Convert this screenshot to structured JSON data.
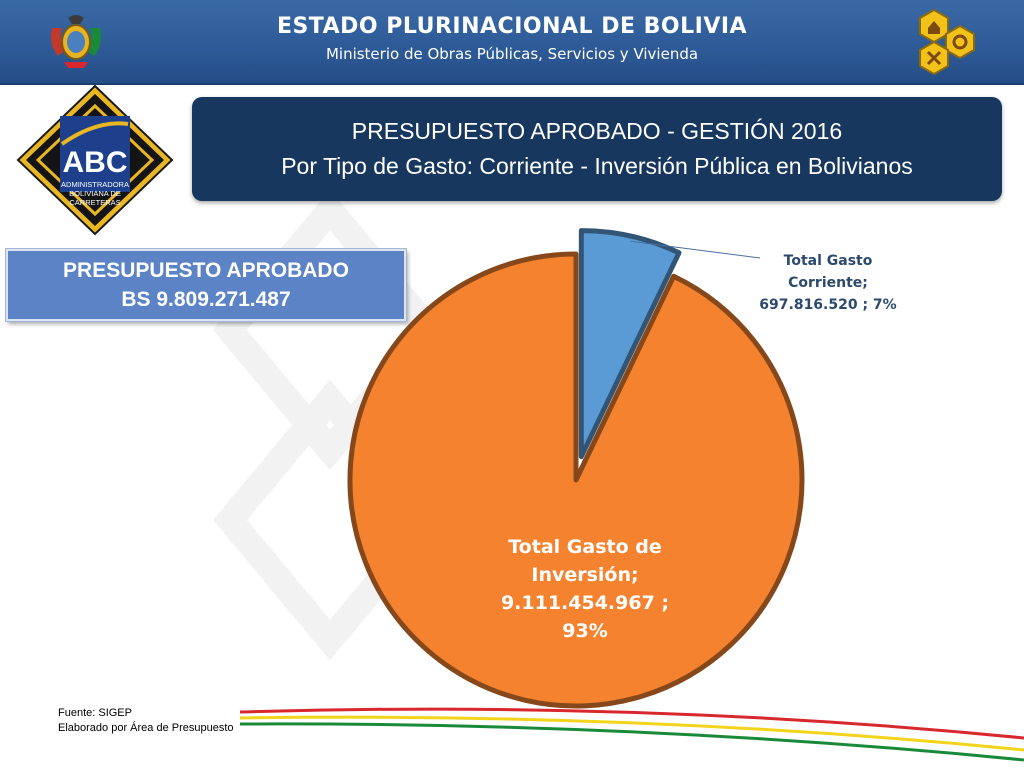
{
  "header": {
    "title": "ESTADO PLURINACIONAL DE BOLIVIA",
    "subtitle": "Ministerio de Obras Públicas, Servicios y Vivienda"
  },
  "abc_logo": {
    "text": "ABC",
    "lines": [
      "ADMINISTRADORA",
      "BOLIVIANA DE",
      "CARRETERAS"
    ]
  },
  "title_box": {
    "line1": "PRESUPUESTO APROBADO  - GESTIÓN 2016",
    "line2": "Por Tipo de Gasto: Corriente - Inversión Pública   en Bolivianos"
  },
  "budget_box": {
    "line1": "PRESUPUESTO APROBADO",
    "line2": "BS 9.809.271.487"
  },
  "chart_data": {
    "type": "pie",
    "total": 9809271487,
    "slices": [
      {
        "label_lines": [
          "Total Gasto",
          "Corriente;",
          "697.816.520 ; 7%"
        ],
        "value": 697816520,
        "percent": 7,
        "color": "#5b9bd5",
        "exploded": true
      },
      {
        "label_lines": [
          "Total Gasto de",
          "Inversión;",
          "9.111.454.967 ;",
          "93%"
        ],
        "value": 9111454967,
        "percent": 93,
        "color": "#f4822f",
        "exploded": false
      }
    ]
  },
  "footer": {
    "source": "Fuente: SIGEP",
    "prepared_by": "Elaborado por Área de Presupuesto"
  },
  "colors": {
    "header_bg": "#2d5a96",
    "title_box_bg": "#17375e",
    "budget_box_bg": "#5b83c6",
    "stripe_red": "#d9272e",
    "stripe_yellow": "#f2d41c",
    "stripe_green": "#1a8a3a"
  }
}
